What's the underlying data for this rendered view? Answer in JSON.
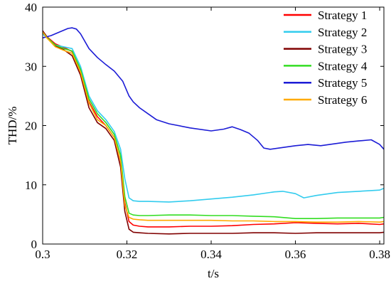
{
  "chart_data": {
    "type": "line",
    "title": "",
    "xlabel": "t/s",
    "ylabel": "THD/%",
    "xlim": [
      0.3,
      0.381
    ],
    "ylim": [
      0,
      40
    ],
    "xticks": [
      0.3,
      0.32,
      0.34,
      0.36,
      0.38
    ],
    "xtick_labels": [
      "0.3",
      "0.32",
      "0.34",
      "0.36",
      "0.38"
    ],
    "yticks": [
      0,
      10,
      20,
      30,
      40
    ],
    "ytick_labels": [
      "0",
      "10",
      "20",
      "30",
      "40"
    ],
    "grid": false,
    "legend_position": "top-right",
    "series": [
      {
        "name": "Strategy 1",
        "color": "#ff0000",
        "x": [
          0.3,
          0.301,
          0.303,
          0.305,
          0.307,
          0.309,
          0.311,
          0.313,
          0.315,
          0.317,
          0.3185,
          0.3195,
          0.3205,
          0.3215,
          0.323,
          0.325,
          0.33,
          0.335,
          0.34,
          0.345,
          0.35,
          0.355,
          0.36,
          0.365,
          0.37,
          0.375,
          0.38,
          0.381
        ],
        "y": [
          36,
          35,
          33.8,
          33.2,
          32.5,
          29,
          24,
          21.5,
          20,
          18,
          14,
          7,
          3.8,
          3.2,
          3.0,
          2.9,
          2.9,
          3.0,
          3.0,
          3.1,
          3.3,
          3.4,
          3.6,
          3.5,
          3.4,
          3.5,
          3.3,
          3.4
        ]
      },
      {
        "name": "Strategy 2",
        "color": "#33ccee",
        "x": [
          0.3,
          0.301,
          0.303,
          0.305,
          0.307,
          0.309,
          0.311,
          0.313,
          0.315,
          0.317,
          0.3185,
          0.3195,
          0.3205,
          0.3215,
          0.323,
          0.325,
          0.33,
          0.335,
          0.34,
          0.345,
          0.35,
          0.355,
          0.357,
          0.36,
          0.362,
          0.365,
          0.37,
          0.375,
          0.38,
          0.381
        ],
        "y": [
          35.5,
          34.8,
          33.6,
          33.3,
          33,
          30,
          25,
          22.5,
          21,
          19,
          16,
          11,
          7.8,
          7.3,
          7.2,
          7.2,
          7.1,
          7.3,
          7.6,
          7.9,
          8.3,
          8.8,
          8.9,
          8.5,
          7.8,
          8.2,
          8.7,
          8.9,
          9.1,
          9.4
        ]
      },
      {
        "name": "Strategy 3",
        "color": "#800000",
        "x": [
          0.3,
          0.301,
          0.303,
          0.305,
          0.307,
          0.309,
          0.311,
          0.313,
          0.315,
          0.317,
          0.3185,
          0.3195,
          0.3205,
          0.3215,
          0.323,
          0.325,
          0.33,
          0.335,
          0.34,
          0.345,
          0.35,
          0.355,
          0.36,
          0.365,
          0.37,
          0.375,
          0.38,
          0.381
        ],
        "y": [
          36,
          35,
          33.4,
          32.8,
          31.8,
          28.5,
          23,
          20.5,
          19.5,
          17.5,
          13,
          5.5,
          2.5,
          2.0,
          1.9,
          1.8,
          1.7,
          1.8,
          1.8,
          1.8,
          1.9,
          1.9,
          1.8,
          1.9,
          1.9,
          1.9,
          1.9,
          2.0
        ]
      },
      {
        "name": "Strategy 4",
        "color": "#33dd22",
        "x": [
          0.3,
          0.301,
          0.303,
          0.305,
          0.307,
          0.309,
          0.311,
          0.313,
          0.315,
          0.317,
          0.3185,
          0.3195,
          0.3205,
          0.3215,
          0.323,
          0.325,
          0.33,
          0.335,
          0.34,
          0.345,
          0.35,
          0.355,
          0.36,
          0.365,
          0.37,
          0.375,
          0.38,
          0.381
        ],
        "y": [
          35.8,
          34.9,
          33.6,
          33.0,
          32.6,
          29.5,
          24.5,
          22,
          20.5,
          18.5,
          15,
          8,
          5.2,
          4.9,
          4.8,
          4.8,
          4.9,
          4.9,
          4.8,
          4.8,
          4.7,
          4.6,
          4.3,
          4.3,
          4.4,
          4.4,
          4.4,
          4.5
        ]
      },
      {
        "name": "Strategy 5",
        "color": "#1c1cd6",
        "x": [
          0.3,
          0.302,
          0.304,
          0.306,
          0.307,
          0.308,
          0.309,
          0.311,
          0.313,
          0.315,
          0.317,
          0.319,
          0.3205,
          0.3215,
          0.323,
          0.325,
          0.327,
          0.33,
          0.335,
          0.34,
          0.343,
          0.345,
          0.347,
          0.349,
          0.351,
          0.3525,
          0.354,
          0.357,
          0.36,
          0.363,
          0.366,
          0.369,
          0.372,
          0.375,
          0.378,
          0.38,
          0.381
        ],
        "y": [
          34.8,
          35.2,
          35.8,
          36.4,
          36.5,
          36.3,
          35.5,
          33,
          31.5,
          30.3,
          29.2,
          27.5,
          25,
          24,
          23,
          22,
          21,
          20.3,
          19.6,
          19.1,
          19.4,
          19.8,
          19.3,
          18.7,
          17.5,
          16.2,
          16.0,
          16.3,
          16.6,
          16.8,
          16.6,
          16.9,
          17.2,
          17.4,
          17.6,
          16.8,
          16.0
        ]
      },
      {
        "name": "Strategy 6",
        "color": "#ffaa00",
        "x": [
          0.3,
          0.301,
          0.303,
          0.305,
          0.307,
          0.309,
          0.311,
          0.313,
          0.315,
          0.317,
          0.3185,
          0.3195,
          0.3205,
          0.3215,
          0.323,
          0.325,
          0.33,
          0.335,
          0.34,
          0.345,
          0.35,
          0.355,
          0.36,
          0.365,
          0.37,
          0.375,
          0.38,
          0.381
        ],
        "y": [
          35.8,
          34.8,
          33.3,
          32.7,
          32.2,
          29,
          23.8,
          21,
          20,
          18,
          14,
          6.5,
          4.5,
          4.2,
          4.1,
          4.0,
          4.0,
          4.0,
          4.0,
          3.9,
          3.9,
          3.8,
          3.8,
          3.7,
          3.7,
          3.8,
          3.7,
          3.8
        ]
      }
    ]
  }
}
